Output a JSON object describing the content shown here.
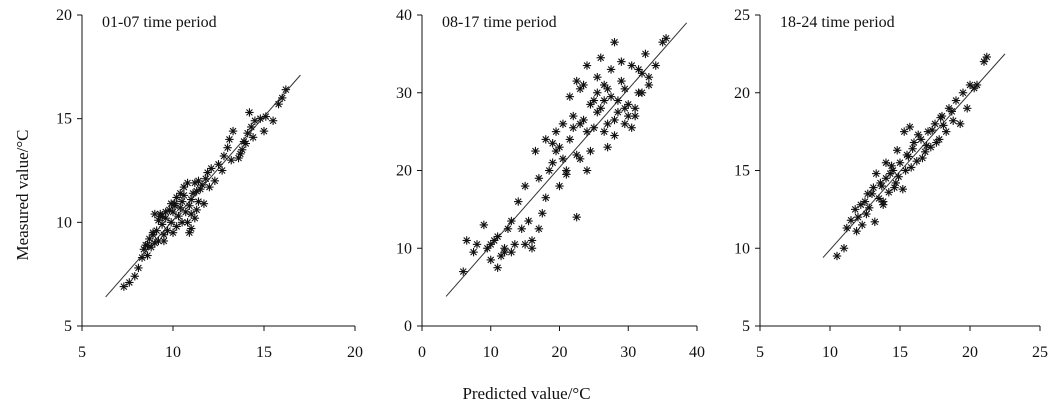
{
  "figure": {
    "ylabel": "Measured value/°C",
    "xlabel": "Predicted value/°C"
  },
  "chart_data": [
    {
      "type": "scatter",
      "title": "01-07 time period",
      "xlim": [
        5,
        20
      ],
      "ylim": [
        5,
        20
      ],
      "xticks": [
        5,
        10,
        15,
        20
      ],
      "yticks": [
        5,
        10,
        15,
        20
      ],
      "fit_line": [
        [
          6.3,
          6.4
        ],
        [
          17.0,
          17.1
        ]
      ],
      "points": [
        [
          7.3,
          6.9
        ],
        [
          7.6,
          7.1
        ],
        [
          7.9,
          7.4
        ],
        [
          8.1,
          7.8
        ],
        [
          8.3,
          8.3
        ],
        [
          8.4,
          8.7
        ],
        [
          8.6,
          8.9
        ],
        [
          8.7,
          9.2
        ],
        [
          8.9,
          9.5
        ],
        [
          8.6,
          8.4
        ],
        [
          8.8,
          8.8
        ],
        [
          9.0,
          9.0
        ],
        [
          9.1,
          9.6
        ],
        [
          9.2,
          10.1
        ],
        [
          9.3,
          10.4
        ],
        [
          9.4,
          9.9
        ],
        [
          9.5,
          9.4
        ],
        [
          9.6,
          10.2
        ],
        [
          9.8,
          10.6
        ],
        [
          9.0,
          10.4
        ],
        [
          9.3,
          10.3
        ],
        [
          9.7,
          9.6
        ],
        [
          9.9,
          10.0
        ],
        [
          10.0,
          10.5
        ],
        [
          10.1,
          10.9
        ],
        [
          10.2,
          11.2
        ],
        [
          10.3,
          10.3
        ],
        [
          10.4,
          10.7
        ],
        [
          10.5,
          11.0
        ],
        [
          10.6,
          11.3
        ],
        [
          10.7,
          10.5
        ],
        [
          10.8,
          10.0
        ],
        [
          10.9,
          10.8
        ],
        [
          11.0,
          11.1
        ],
        [
          11.1,
          11.4
        ],
        [
          11.0,
          9.7
        ],
        [
          10.9,
          9.5
        ],
        [
          11.2,
          10.2
        ],
        [
          11.3,
          10.6
        ],
        [
          11.4,
          11.0
        ],
        [
          11.5,
          11.6
        ],
        [
          11.6,
          11.8
        ],
        [
          11.8,
          12.1
        ],
        [
          11.9,
          12.4
        ],
        [
          12.1,
          12.6
        ],
        [
          11.2,
          11.9
        ],
        [
          11.4,
          12.0
        ],
        [
          10.5,
          10.0
        ],
        [
          10.2,
          9.8
        ],
        [
          9.5,
          9.1
        ],
        [
          12.5,
          12.8
        ],
        [
          12.8,
          13.2
        ],
        [
          13.0,
          13.6
        ],
        [
          13.1,
          14.0
        ],
        [
          13.3,
          14.4
        ],
        [
          13.6,
          13.1
        ],
        [
          13.8,
          13.5
        ],
        [
          13.9,
          13.9
        ],
        [
          14.1,
          14.3
        ],
        [
          14.3,
          14.6
        ],
        [
          14.0,
          13.8
        ],
        [
          13.7,
          13.3
        ],
        [
          14.5,
          14.9
        ],
        [
          14.8,
          15.0
        ],
        [
          15.0,
          14.4
        ],
        [
          15.5,
          14.9
        ],
        [
          15.8,
          15.7
        ],
        [
          16.0,
          16.0
        ],
        [
          16.2,
          16.4
        ],
        [
          14.2,
          15.3
        ],
        [
          12.3,
          12.0
        ],
        [
          10.6,
          11.7
        ],
        [
          10.8,
          11.9
        ],
        [
          9.9,
          10.9
        ],
        [
          9.6,
          10.5
        ],
        [
          8.9,
          9.4
        ],
        [
          9.4,
          10.3
        ],
        [
          10.0,
          9.5
        ],
        [
          11.0,
          10.4
        ],
        [
          11.7,
          10.9
        ],
        [
          12.0,
          11.7
        ],
        [
          13.2,
          13.0
        ],
        [
          14.4,
          14.1
        ],
        [
          15.1,
          15.1
        ],
        [
          10.4,
          11.4
        ],
        [
          11.3,
          11.5
        ],
        [
          10.1,
          10.8
        ],
        [
          9.2,
          9.1
        ],
        [
          8.5,
          8.9
        ],
        [
          12.7,
          12.5
        ]
      ]
    },
    {
      "type": "scatter",
      "title": "08-17 time period",
      "xlim": [
        0,
        40
      ],
      "ylim": [
        0,
        40
      ],
      "xticks": [
        0,
        10,
        20,
        30,
        40
      ],
      "yticks": [
        0,
        10,
        20,
        30,
        40
      ],
      "fit_line": [
        [
          3.5,
          3.8
        ],
        [
          38.5,
          39.0
        ]
      ],
      "points": [
        [
          6.0,
          7.0
        ],
        [
          6.5,
          11.0
        ],
        [
          7.5,
          9.5
        ],
        [
          8.0,
          10.5
        ],
        [
          9.0,
          13.0
        ],
        [
          9.5,
          10.0
        ],
        [
          10.0,
          10.5
        ],
        [
          10.5,
          11.0
        ],
        [
          11.0,
          7.5
        ],
        [
          11.5,
          9.0
        ],
        [
          12.0,
          9.5
        ],
        [
          12.5,
          12.5
        ],
        [
          13.0,
          13.5
        ],
        [
          13.5,
          10.5
        ],
        [
          14.0,
          16.0
        ],
        [
          14.5,
          12.5
        ],
        [
          15.0,
          10.5
        ],
        [
          15.5,
          13.5
        ],
        [
          16.0,
          11.0
        ],
        [
          16.5,
          22.5
        ],
        [
          17.0,
          19.0
        ],
        [
          17.5,
          14.5
        ],
        [
          18.0,
          16.5
        ],
        [
          18.5,
          20.0
        ],
        [
          19.0,
          23.5
        ],
        [
          19.5,
          22.5
        ],
        [
          20.0,
          18.0
        ],
        [
          20.5,
          21.5
        ],
        [
          21.0,
          20.0
        ],
        [
          21.5,
          24.0
        ],
        [
          22.0,
          27.0
        ],
        [
          22.5,
          14.0
        ],
        [
          22.5,
          22.0
        ],
        [
          23.0,
          30.5
        ],
        [
          23.5,
          26.5
        ],
        [
          24.0,
          25.0
        ],
        [
          24.5,
          22.5
        ],
        [
          25.0,
          29.0
        ],
        [
          25.5,
          32.0
        ],
        [
          26.0,
          28.0
        ],
        [
          26.5,
          31.0
        ],
        [
          27.0,
          26.0
        ],
        [
          27.5,
          29.5
        ],
        [
          28.0,
          36.5
        ],
        [
          28.0,
          24.5
        ],
        [
          28.5,
          27.5
        ],
        [
          29.0,
          31.5
        ],
        [
          29.5,
          26.0
        ],
        [
          30.0,
          28.5
        ],
        [
          30.5,
          33.5
        ],
        [
          31.0,
          27.0
        ],
        [
          31.5,
          30.0
        ],
        [
          32.0,
          32.5
        ],
        [
          32.5,
          35.0
        ],
        [
          33.0,
          31.0
        ],
        [
          35.0,
          36.5
        ],
        [
          35.5,
          37.0
        ],
        [
          24.0,
          33.5
        ],
        [
          23.0,
          21.5
        ],
        [
          21.0,
          19.5
        ],
        [
          20.0,
          23.0
        ],
        [
          19.0,
          21.0
        ],
        [
          18.0,
          24.0
        ],
        [
          17.0,
          12.5
        ],
        [
          16.0,
          10.0
        ],
        [
          15.0,
          18.0
        ],
        [
          13.0,
          9.5
        ],
        [
          12.0,
          10.0
        ],
        [
          11.0,
          11.5
        ],
        [
          10.0,
          8.5
        ],
        [
          25.5,
          27.5
        ],
        [
          26.5,
          25.0
        ],
        [
          27.5,
          33.0
        ],
        [
          28.5,
          29.0
        ],
        [
          29.5,
          30.5
        ],
        [
          30.5,
          25.5
        ],
        [
          31.5,
          33.0
        ],
        [
          32.0,
          30.0
        ],
        [
          27.0,
          30.5
        ],
        [
          26.0,
          34.5
        ],
        [
          24.5,
          28.5
        ],
        [
          23.5,
          31.0
        ],
        [
          22.0,
          25.5
        ],
        [
          21.5,
          29.5
        ],
        [
          20.5,
          26.0
        ],
        [
          19.5,
          25.0
        ],
        [
          29.0,
          34.0
        ],
        [
          30.0,
          27.0
        ],
        [
          28.0,
          26.5
        ],
        [
          27.0,
          23.0
        ],
        [
          25.0,
          25.5
        ],
        [
          24.0,
          20.0
        ],
        [
          23.0,
          26.0
        ],
        [
          22.5,
          31.5
        ],
        [
          33.0,
          32.0
        ],
        [
          31.0,
          28.0
        ],
        [
          34.0,
          33.5
        ],
        [
          29.5,
          28.0
        ],
        [
          26.5,
          29.0
        ],
        [
          25.5,
          30.0
        ]
      ]
    },
    {
      "type": "scatter",
      "title": "18-24 time period",
      "xlim": [
        5,
        25
      ],
      "ylim": [
        5,
        25
      ],
      "xticks": [
        5,
        10,
        15,
        20,
        25
      ],
      "yticks": [
        5,
        10,
        15,
        20,
        25
      ],
      "fit_line": [
        [
          9.5,
          9.4
        ],
        [
          22.5,
          22.5
        ]
      ],
      "points": [
        [
          10.5,
          9.5
        ],
        [
          11.0,
          10.0
        ],
        [
          11.2,
          11.3
        ],
        [
          11.5,
          11.8
        ],
        [
          11.8,
          12.5
        ],
        [
          12.0,
          12.0
        ],
        [
          12.3,
          11.5
        ],
        [
          12.5,
          13.0
        ],
        [
          12.8,
          12.6
        ],
        [
          13.0,
          13.5
        ],
        [
          13.2,
          11.7
        ],
        [
          13.5,
          13.2
        ],
        [
          13.7,
          14.0
        ],
        [
          13.8,
          12.8
        ],
        [
          14.0,
          14.5
        ],
        [
          14.2,
          13.6
        ],
        [
          14.5,
          15.0
        ],
        [
          14.7,
          14.2
        ],
        [
          15.0,
          15.5
        ],
        [
          15.2,
          13.8
        ],
        [
          15.5,
          16.0
        ],
        [
          15.7,
          17.8
        ],
        [
          15.8,
          15.2
        ],
        [
          16.0,
          16.8
        ],
        [
          16.2,
          15.6
        ],
        [
          16.5,
          17.0
        ],
        [
          16.8,
          16.2
        ],
        [
          17.0,
          17.5
        ],
        [
          17.2,
          16.5
        ],
        [
          17.5,
          18.0
        ],
        [
          17.8,
          17.0
        ],
        [
          18.0,
          18.5
        ],
        [
          18.3,
          17.5
        ],
        [
          18.5,
          19.0
        ],
        [
          18.8,
          18.2
        ],
        [
          19.0,
          19.5
        ],
        [
          19.3,
          18.0
        ],
        [
          19.5,
          20.0
        ],
        [
          20.0,
          20.5
        ],
        [
          20.5,
          20.5
        ],
        [
          21.0,
          22.0
        ],
        [
          21.2,
          22.3
        ],
        [
          20.3,
          20.3
        ],
        [
          19.8,
          19.0
        ],
        [
          15.3,
          17.5
        ],
        [
          14.8,
          16.3
        ],
        [
          14.0,
          15.5
        ],
        [
          13.3,
          14.8
        ],
        [
          12.7,
          13.5
        ],
        [
          13.8,
          13.0
        ],
        [
          14.3,
          14.8
        ],
        [
          14.6,
          13.9
        ],
        [
          15.4,
          15.0
        ],
        [
          16.6,
          15.8
        ],
        [
          17.3,
          17.6
        ],
        [
          17.9,
          18.4
        ],
        [
          18.7,
          18.8
        ],
        [
          16.3,
          17.3
        ],
        [
          15.9,
          16.4
        ],
        [
          13.6,
          14.2
        ],
        [
          12.2,
          12.8
        ],
        [
          11.9,
          11.1
        ],
        [
          14.9,
          14.6
        ],
        [
          16.9,
          16.6
        ],
        [
          17.6,
          16.8
        ],
        [
          18.1,
          17.9
        ],
        [
          15.6,
          15.9
        ],
        [
          13.1,
          13.9
        ],
        [
          12.6,
          12.2
        ],
        [
          14.4,
          15.3
        ]
      ]
    }
  ]
}
